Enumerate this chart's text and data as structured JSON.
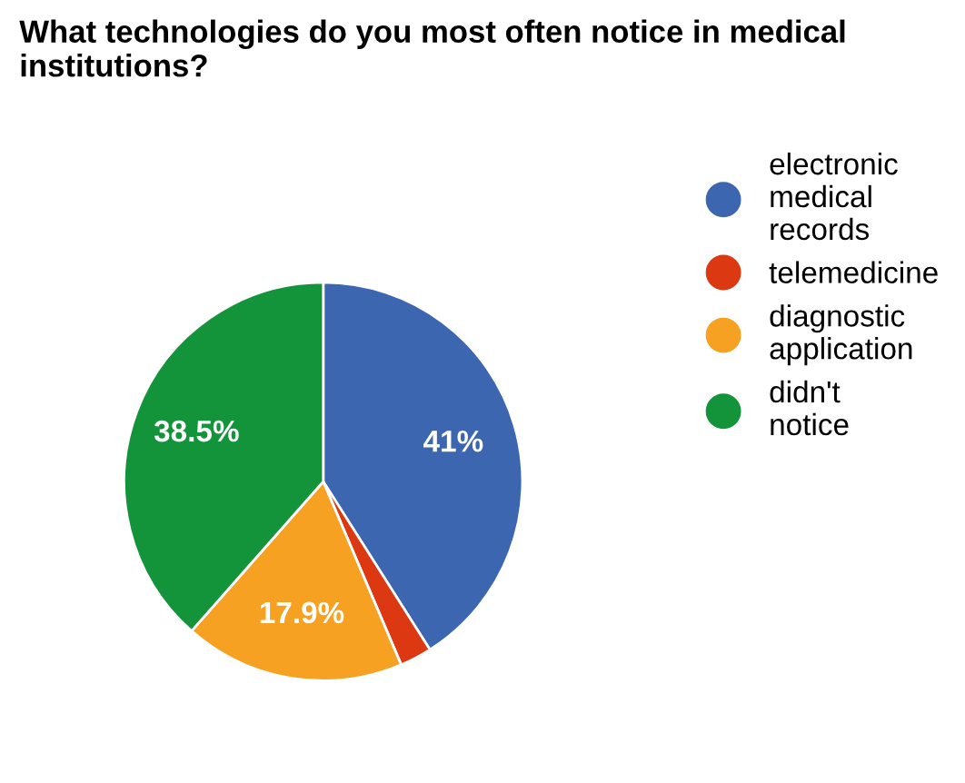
{
  "chart_data": {
    "type": "pie",
    "title": "What technologies do you most often notice in medical institutions?",
    "categories": [
      "electronic medical records",
      "telemedicine",
      "diagnostic application",
      "didn't notice"
    ],
    "values": [
      41,
      2.6,
      17.9,
      38.5
    ],
    "colors": [
      "#3d66b0",
      "#dc3912",
      "#f7a123",
      "#14943a"
    ],
    "value_labels": [
      "41%",
      null,
      "17.9%",
      "38.5%"
    ],
    "legend": "right"
  }
}
